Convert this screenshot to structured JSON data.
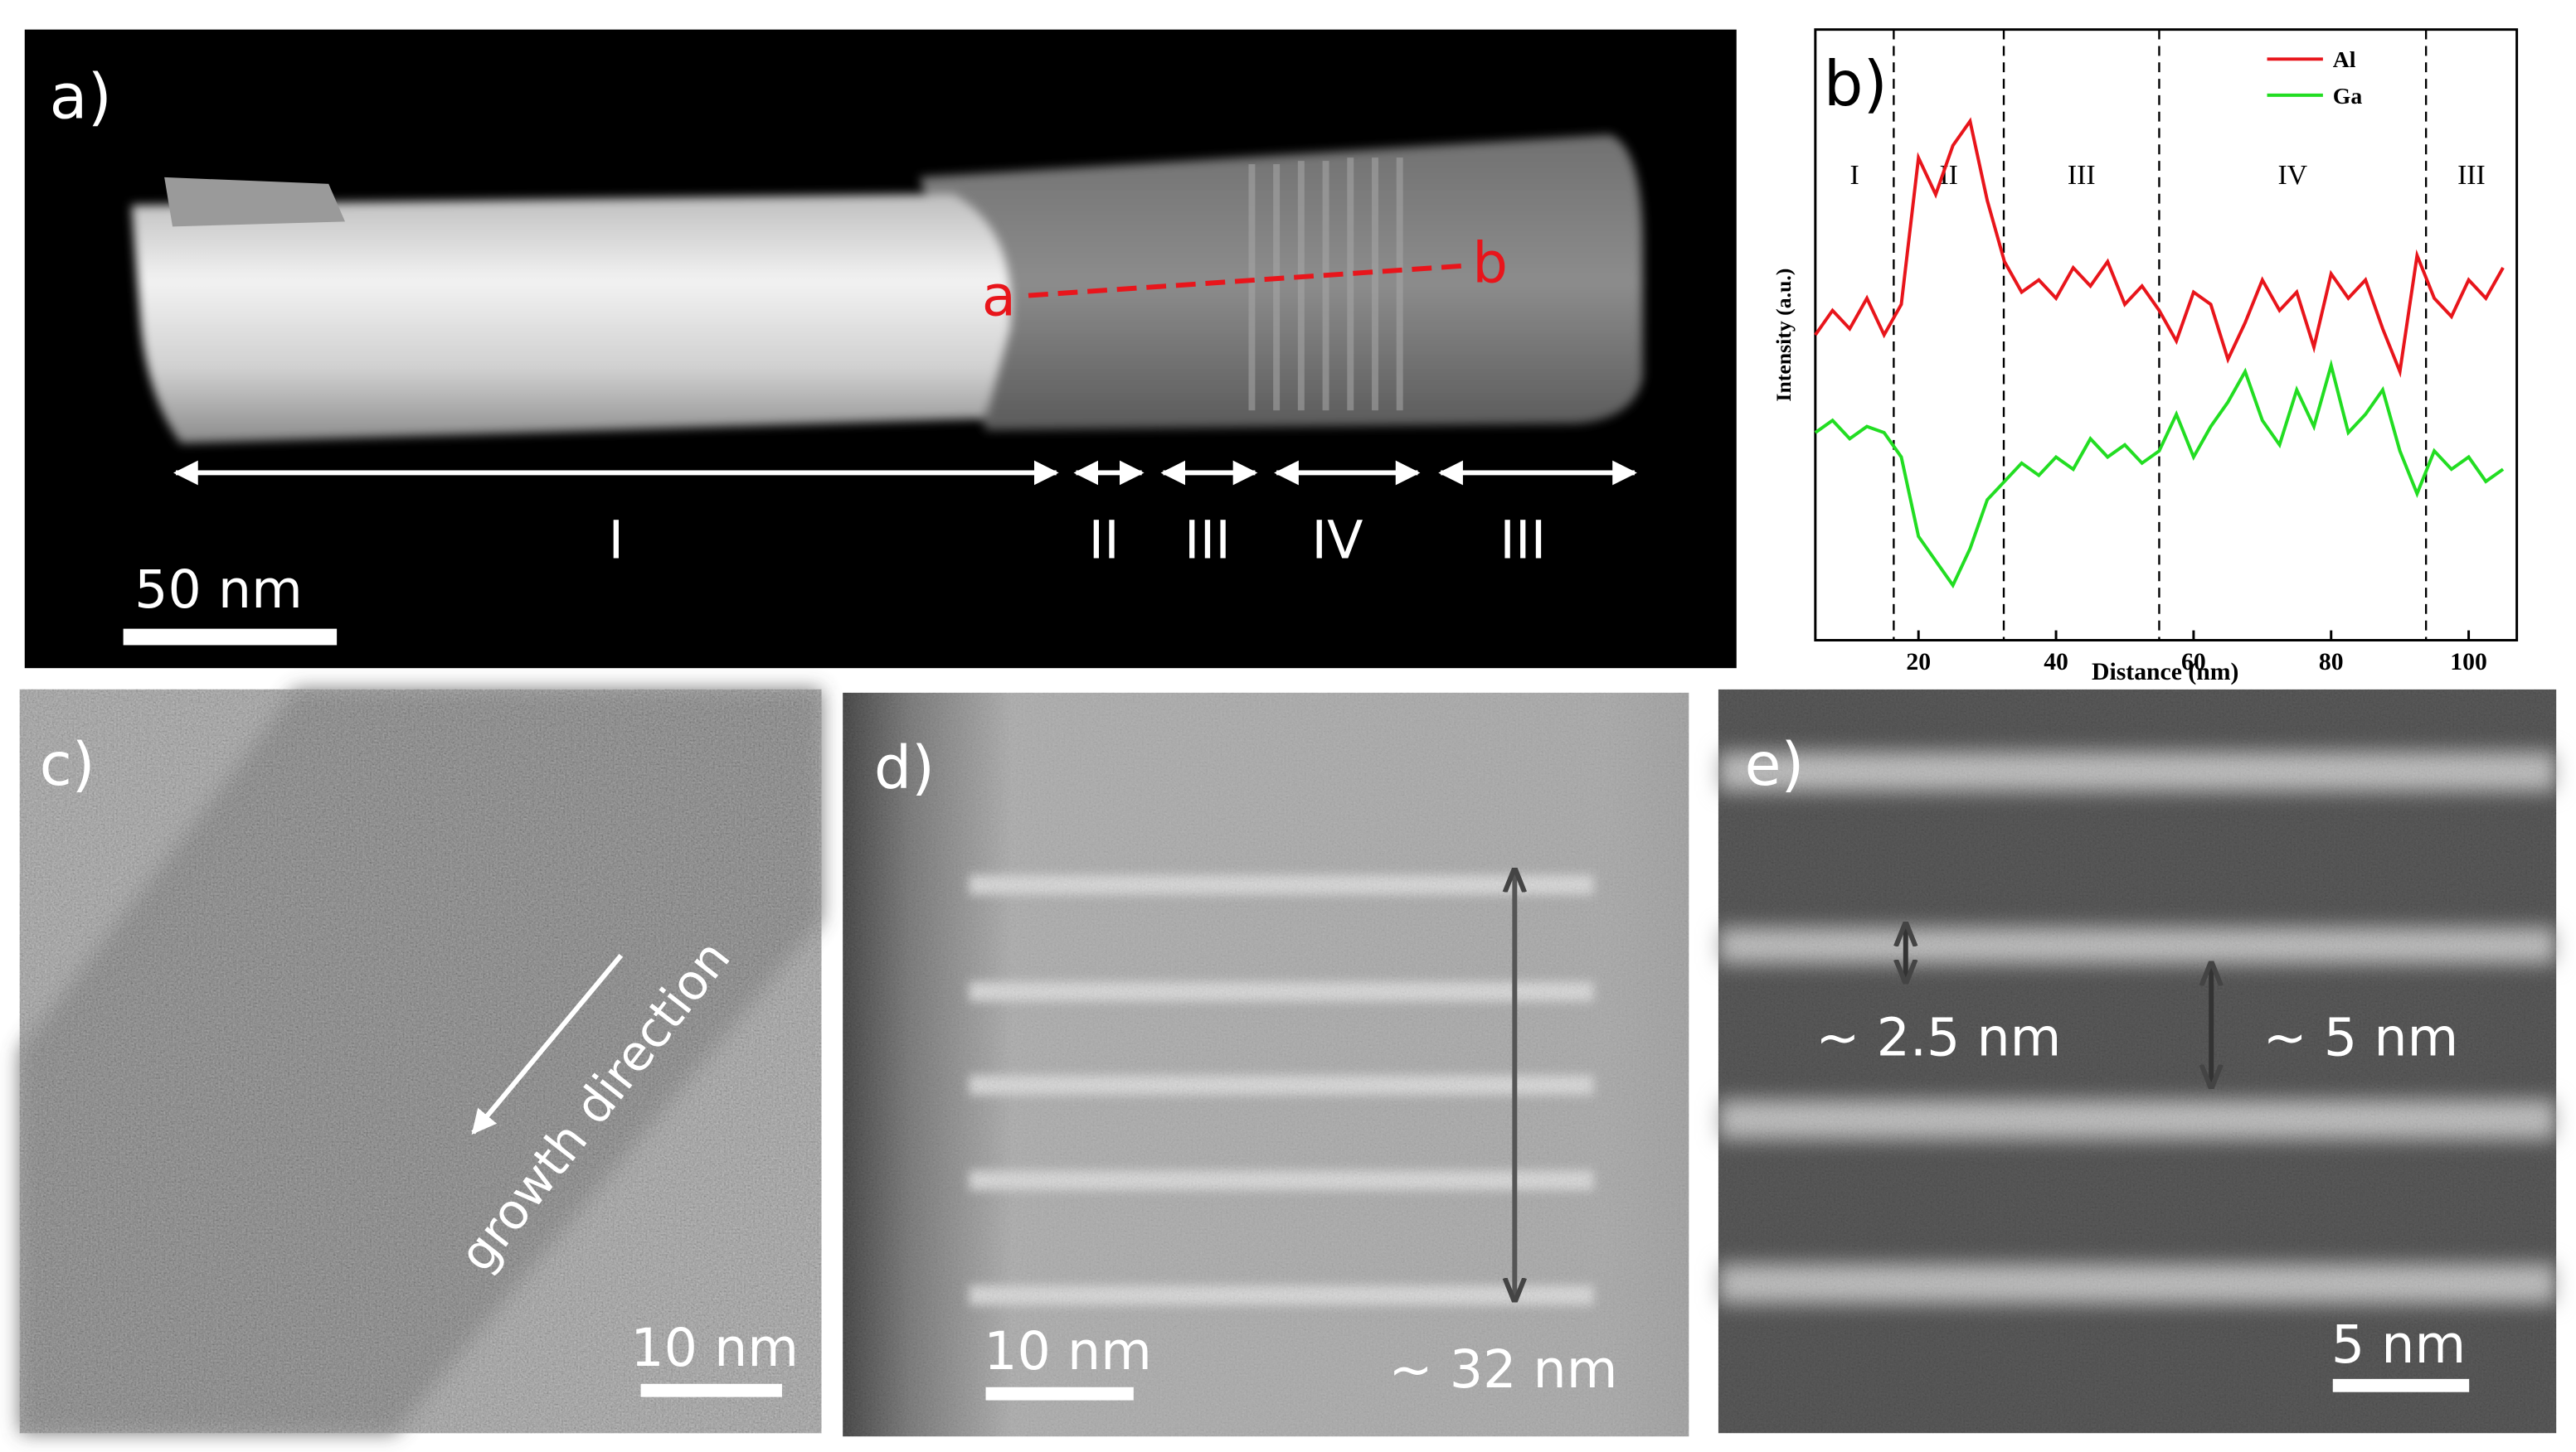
{
  "panels": {
    "a": {
      "label": "a)",
      "point_a": "a",
      "point_b": "b",
      "regions": [
        "I",
        "II",
        "III",
        "IV",
        "III"
      ],
      "scale_bar": "50 nm"
    },
    "c": {
      "label": "c)",
      "arrow_text": "growth direction",
      "scale_bar": "10 nm"
    },
    "d": {
      "label": "d)",
      "period": "~ 32 nm",
      "scale_bar": "10 nm"
    },
    "e": {
      "label": "e)",
      "thin": "~ 2.5 nm",
      "thick": "~ 5 nm",
      "scale_bar": "5 nm"
    }
  },
  "chart_data": {
    "type": "line",
    "panel_label": "b)",
    "xlabel": "Distance (nm)",
    "ylabel": "Intensity (a.u.)",
    "x": [
      5,
      7.5,
      10,
      12.5,
      15,
      17.5,
      20,
      22.5,
      25,
      27.5,
      30,
      32.5,
      35,
      37.5,
      40,
      42.5,
      45,
      47.5,
      50,
      52.5,
      55,
      57.5,
      60,
      62.5,
      65,
      67.5,
      70,
      72.5,
      75,
      77.5,
      80,
      82.5,
      85,
      87.5,
      90,
      92.5,
      95,
      97.5,
      100,
      102.5,
      105
    ],
    "series": [
      {
        "name": "Al",
        "color": "#e8151b",
        "values": [
          5.0,
          5.4,
          5.1,
          5.6,
          5.0,
          5.5,
          7.9,
          7.3,
          8.1,
          8.5,
          7.2,
          6.2,
          5.7,
          5.9,
          5.6,
          6.1,
          5.8,
          6.2,
          5.5,
          5.8,
          5.4,
          4.9,
          5.7,
          5.5,
          4.6,
          5.2,
          5.9,
          5.4,
          5.7,
          4.8,
          6.0,
          5.6,
          5.9,
          5.1,
          4.4,
          6.3,
          5.6,
          5.3,
          5.9,
          5.6,
          6.1
        ]
      },
      {
        "name": "Ga",
        "color": "#22dd22",
        "values": [
          3.4,
          3.6,
          3.3,
          3.5,
          3.4,
          3.0,
          1.7,
          1.3,
          0.9,
          1.5,
          2.3,
          2.6,
          2.9,
          2.7,
          3.0,
          2.8,
          3.3,
          3.0,
          3.2,
          2.9,
          3.1,
          3.7,
          3.0,
          3.5,
          3.9,
          4.4,
          3.6,
          3.2,
          4.1,
          3.5,
          4.5,
          3.4,
          3.7,
          4.1,
          3.1,
          2.4,
          3.1,
          2.8,
          3.0,
          2.6,
          2.8
        ]
      }
    ],
    "dividers": [
      16.4,
      32.4,
      55,
      93.8
    ],
    "region_labels": [
      "I",
      "II",
      "III",
      "IV",
      "III"
    ],
    "xlim": [
      5,
      107
    ],
    "xticks": [
      20,
      40,
      60,
      80,
      100
    ],
    "ylim": [
      0,
      10
    ],
    "legend": "top-right"
  }
}
